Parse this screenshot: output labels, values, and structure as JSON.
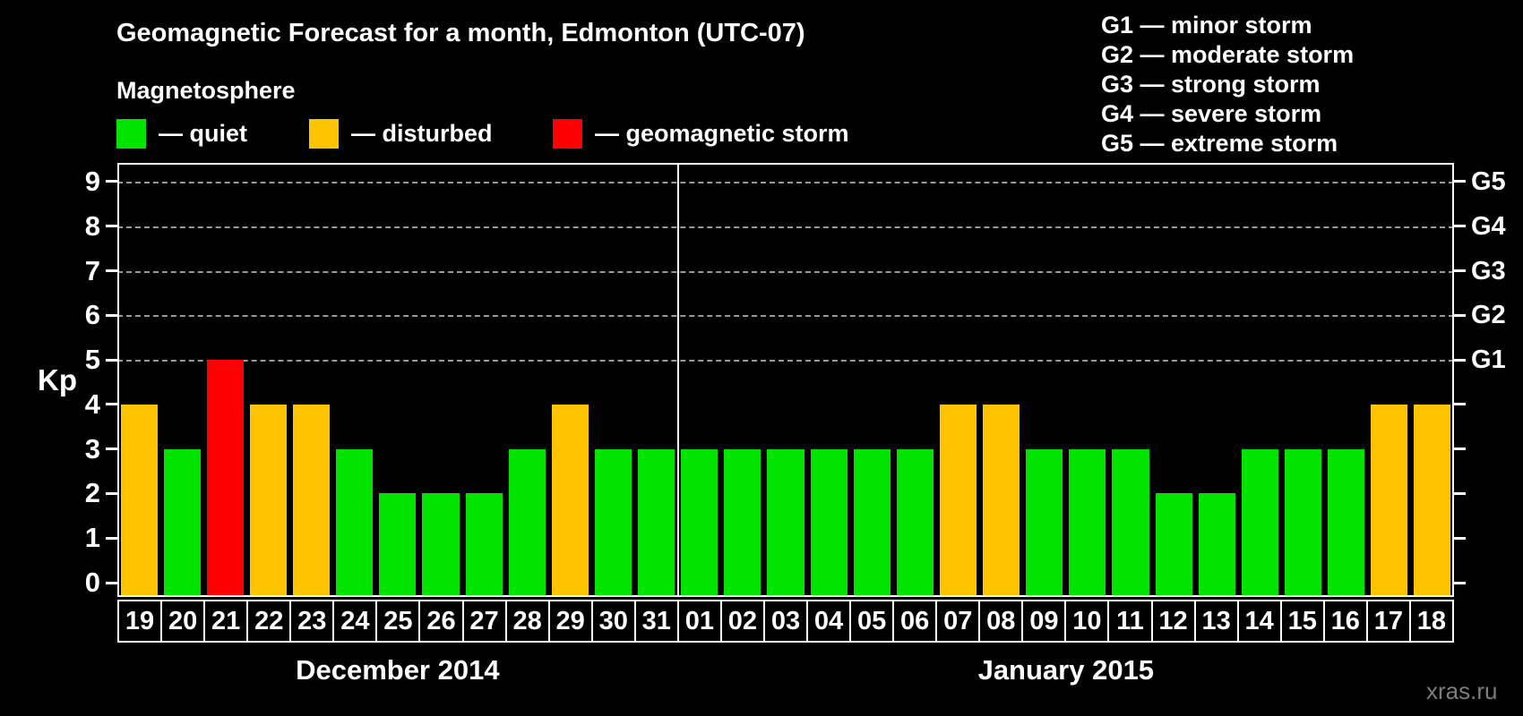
{
  "title": "Geomagnetic Forecast for a month, Edmonton (UTC-07)",
  "subtitle": "Magnetosphere",
  "legend": {
    "items": [
      {
        "key": "quiet",
        "label": "— quiet",
        "color": "#00e400"
      },
      {
        "key": "disturbed",
        "label": "— disturbed",
        "color": "#ffc400"
      },
      {
        "key": "storm",
        "label": "— geomagnetic storm",
        "color": "#ff0000"
      }
    ]
  },
  "g_scale": [
    "G1 — minor storm",
    "G2 — moderate storm",
    "G3 — strong storm",
    "G4 — severe storm",
    "G5 — extreme storm"
  ],
  "watermark": "xras.ru",
  "chart_data": {
    "type": "bar",
    "title": "Geomagnetic Forecast for a month, Edmonton (UTC-07)",
    "subtitle": "Magnetosphere",
    "ylabel": "Kp",
    "ylim": [
      0,
      9
    ],
    "yticks": [
      0,
      1,
      2,
      3,
      4,
      5,
      6,
      7,
      8,
      9
    ],
    "gridlines_kp": [
      5,
      6,
      7,
      8,
      9
    ],
    "grid": "dashed horizontal lines at Kp 5 through 9",
    "legend_position": "top-left",
    "right_axis": [
      {
        "kp": 5,
        "label": "G1"
      },
      {
        "kp": 6,
        "label": "G2"
      },
      {
        "kp": 7,
        "label": "G3"
      },
      {
        "kp": 8,
        "label": "G4"
      },
      {
        "kp": 9,
        "label": "G5"
      }
    ],
    "months": [
      {
        "label": "December 2014",
        "days": 13
      },
      {
        "label": "January 2015",
        "days": 18
      }
    ],
    "categories": [
      "19",
      "20",
      "21",
      "22",
      "23",
      "24",
      "25",
      "26",
      "27",
      "28",
      "29",
      "30",
      "31",
      "01",
      "02",
      "03",
      "04",
      "05",
      "06",
      "07",
      "08",
      "09",
      "10",
      "11",
      "12",
      "13",
      "14",
      "15",
      "16",
      "17",
      "18"
    ],
    "values": [
      4,
      3,
      5,
      4,
      4,
      3,
      2,
      2,
      2,
      3,
      4,
      3,
      3,
      3,
      3,
      3,
      3,
      3,
      3,
      4,
      4,
      3,
      3,
      3,
      2,
      2,
      3,
      3,
      3,
      4,
      4
    ],
    "statuses": [
      "disturbed",
      "quiet",
      "storm",
      "disturbed",
      "disturbed",
      "quiet",
      "quiet",
      "quiet",
      "quiet",
      "quiet",
      "disturbed",
      "quiet",
      "quiet",
      "quiet",
      "quiet",
      "quiet",
      "quiet",
      "quiet",
      "quiet",
      "disturbed",
      "disturbed",
      "quiet",
      "quiet",
      "quiet",
      "quiet",
      "quiet",
      "quiet",
      "quiet",
      "quiet",
      "disturbed",
      "disturbed"
    ]
  }
}
